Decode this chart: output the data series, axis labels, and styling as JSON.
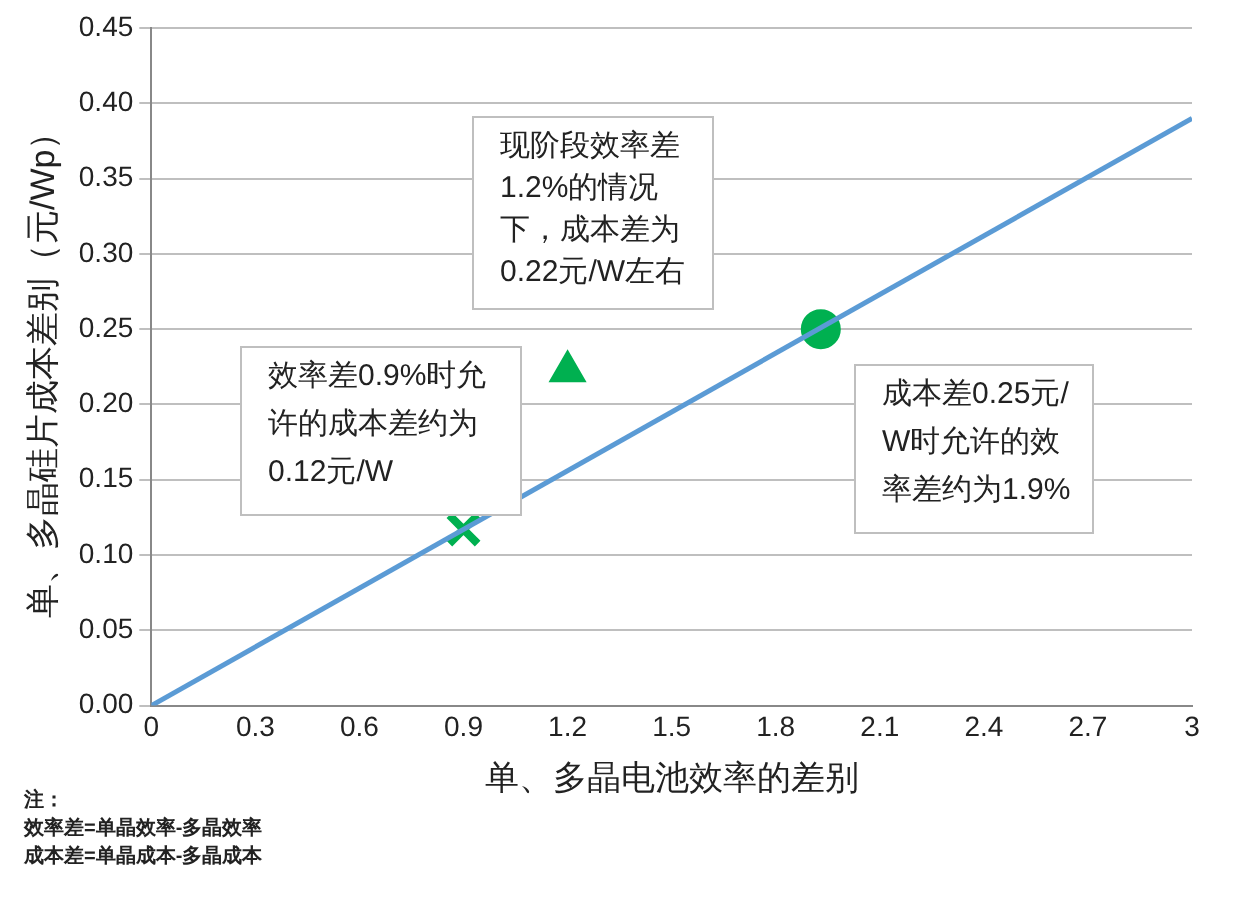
{
  "chart_data": {
    "type": "line",
    "xlabel": "单、多晶电池效率的差别",
    "ylabel": "单、多晶硅片成本差别（元/Wp）",
    "xlim": [
      0,
      3
    ],
    "xticks": [
      0,
      0.3,
      0.6,
      0.9,
      1.2,
      1.5,
      1.8,
      2.1,
      2.4,
      2.7,
      3
    ],
    "ylim": [
      0,
      0.45
    ],
    "yticks": [
      {
        "value": 0,
        "label": "0.00"
      },
      {
        "value": 0.05,
        "label": "0.05"
      },
      {
        "value": 0.1,
        "label": "0.10"
      },
      {
        "value": 0.15,
        "label": "0.15"
      },
      {
        "value": 0.2,
        "label": "0.20"
      },
      {
        "value": 0.25,
        "label": "0.25"
      },
      {
        "value": 0.3,
        "label": "0.30"
      },
      {
        "value": 0.35,
        "label": "0.35"
      },
      {
        "value": 0.4,
        "label": "0.40"
      },
      {
        "value": 0.45,
        "label": "0.45"
      }
    ],
    "grid": "y",
    "legend": false,
    "series": [
      {
        "color": "#5b9bd5",
        "x": [
          0,
          3
        ],
        "values": [
          0,
          0.39
        ],
        "marker": "none"
      },
      {
        "type": "scatter",
        "color": "#00b050",
        "x": [
          0.9
        ],
        "values": [
          0.117
        ],
        "marker": "cross"
      },
      {
        "type": "scatter",
        "color": "#00b050",
        "x": [
          1.2
        ],
        "values": [
          0.222
        ],
        "marker": "triangle"
      },
      {
        "type": "scatter",
        "color": "#00b050",
        "x": [
          1.93
        ],
        "values": [
          0.25
        ],
        "marker": "circle"
      }
    ],
    "annotations": [
      "现阶段效率差1.2%的情况下，成本差为0.22元/W左右",
      "效率差0.9%时允许的成本差约为0.12元/W",
      "成本差0.25元/W时允许的效率差约为1.9%",
      "注：",
      "效率差=单晶效率-多晶效率",
      "成本差=单晶成本-多晶成本"
    ]
  }
}
